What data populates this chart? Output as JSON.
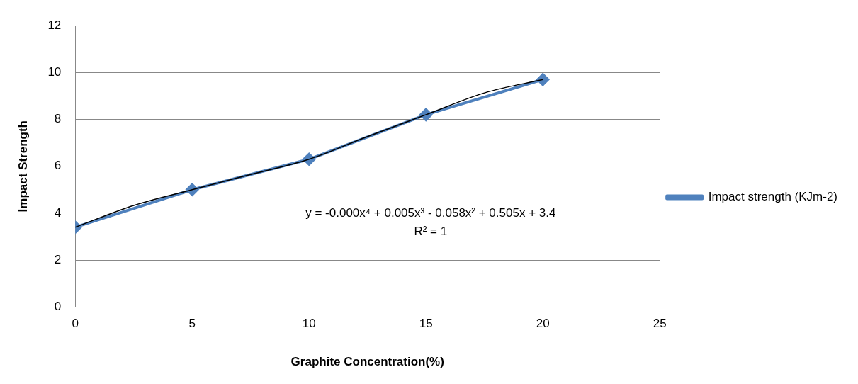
{
  "chart_data": {
    "type": "line",
    "xlabel": "Graphite Concentration(%)",
    "ylabel": "Impact Strength",
    "x": [
      0,
      5,
      10,
      15,
      20
    ],
    "series": [
      {
        "name": "Impact strength (KJm-2)",
        "color": "#4f81bd",
        "values": [
          3.4,
          5.0,
          6.3,
          8.2,
          9.7
        ],
        "marker": "diamond"
      },
      {
        "type": "line",
        "color": "#000000",
        "x": [
          0,
          2.5,
          5,
          7.5,
          10,
          12.5,
          15,
          17.5,
          20
        ],
        "values": [
          3.4,
          4.33,
          5.0,
          5.65,
          6.3,
          7.27,
          8.2,
          9.13,
          9.7
        ],
        "marker": "none"
      }
    ],
    "xlim": [
      0,
      25
    ],
    "xticks": [
      0,
      5,
      10,
      15,
      20,
      25
    ],
    "ylim": [
      0,
      12
    ],
    "yticks": [
      0,
      2,
      4,
      6,
      8,
      10,
      12
    ],
    "grid": "y",
    "legend": "right",
    "annotations": [
      "y = -0.000x⁴ + 0.005x³ - 0.058x² + 0.505x + 3.4",
      "R² = 1"
    ]
  }
}
